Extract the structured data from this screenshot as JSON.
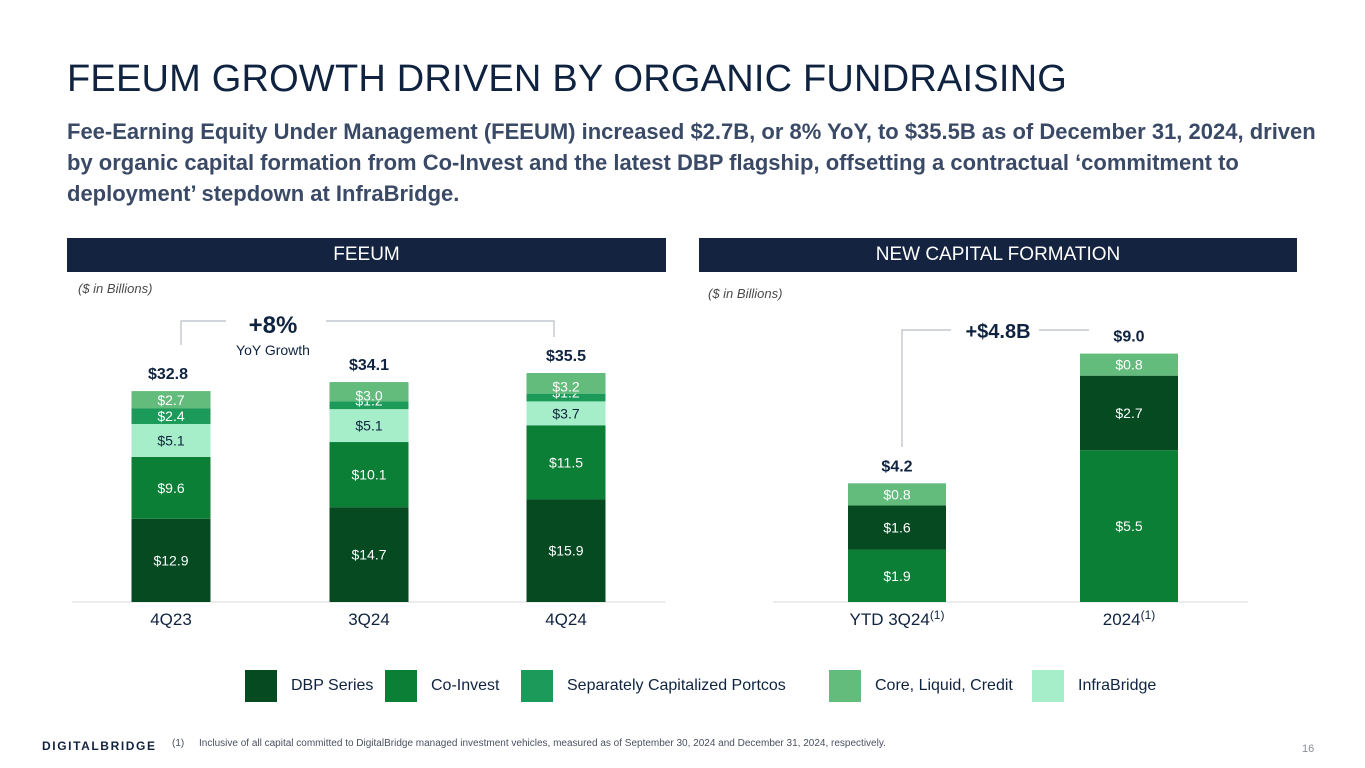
{
  "title": "FEEUM GROWTH DRIVEN BY ORGANIC FUNDRAISING",
  "subtitle": "Fee-Earning Equity Under Management (FEEUM) increased $2.7B, or 8% YoY, to $35.5B as of December 31, 2024, driven by organic capital formation from Co-Invest and the latest DBP flagship, offsetting a contractual ‘commitment to deployment’ stepdown at InfraBridge.",
  "colors": {
    "dbp": "#064a22",
    "coinvest": "#0b7f35",
    "portcos": "#1b9a5a",
    "core": "#63bb7c",
    "infra": "#a6eec9",
    "header_bg": "#14233f"
  },
  "chart_data": [
    {
      "type": "bar",
      "stacked": true,
      "title": "FEEUM",
      "units_note": "($ in Billions)",
      "categories": [
        "4Q23",
        "3Q24",
        "4Q24"
      ],
      "series": [
        {
          "name": "DBP Series",
          "key": "dbp",
          "values": [
            12.9,
            14.7,
            15.9
          ],
          "labels": [
            "$12.9",
            "$14.7",
            "$15.9"
          ]
        },
        {
          "name": "Co-Invest",
          "key": "coinvest",
          "values": [
            9.6,
            10.1,
            11.5
          ],
          "labels": [
            "$9.6",
            "$10.1",
            "$11.5"
          ]
        },
        {
          "name": "InfraBridge",
          "key": "infra",
          "values": [
            5.1,
            5.1,
            3.7
          ],
          "labels": [
            "$5.1",
            "$5.1",
            "$3.7"
          ]
        },
        {
          "name": "Separately Capitalized Portcos",
          "key": "portcos",
          "values": [
            2.4,
            1.2,
            1.2
          ],
          "labels": [
            "$2.4",
            "$1.2",
            "$1.2"
          ]
        },
        {
          "name": "Core, Liquid, Credit",
          "key": "core",
          "values": [
            2.7,
            3.0,
            3.2
          ],
          "labels": [
            "$2.7",
            "$3.0",
            "$3.2"
          ]
        }
      ],
      "totals": [
        32.8,
        34.1,
        35.5
      ],
      "total_labels": [
        "$32.8",
        "$34.1",
        "$35.5"
      ],
      "annotation": {
        "value": "+8%",
        "sub": "YoY Growth"
      },
      "ylim": [
        0,
        40
      ]
    },
    {
      "type": "bar",
      "stacked": true,
      "title": "NEW CAPITAL FORMATION",
      "units_note": "($ in Billions)",
      "categories": [
        "YTD 3Q24",
        "2024"
      ],
      "category_superscripts": [
        "(1)",
        "(1)"
      ],
      "series": [
        {
          "name": "Co-Invest",
          "key": "coinvest",
          "values": [
            1.9,
            5.5
          ],
          "labels": [
            "$1.9",
            "$5.5"
          ]
        },
        {
          "name": "DBP Series",
          "key": "dbp",
          "values": [
            1.6,
            2.7
          ],
          "labels": [
            "$1.6",
            "$2.7"
          ]
        },
        {
          "name": "Core, Liquid, Credit",
          "key": "core",
          "values": [
            0.8,
            0.8
          ],
          "labels": [
            "$0.8",
            "$0.8"
          ]
        }
      ],
      "totals": [
        4.2,
        9.0
      ],
      "total_labels": [
        "$4.2",
        "$9.0"
      ],
      "annotation": {
        "value": "+$4.8B"
      },
      "ylim": [
        0,
        10
      ]
    }
  ],
  "legend": [
    {
      "label": "DBP Series",
      "key": "dbp"
    },
    {
      "label": "Co-Invest",
      "key": "coinvest"
    },
    {
      "label": "Separately Capitalized Portcos",
      "key": "portcos"
    },
    {
      "label": "Core, Liquid, Credit",
      "key": "core"
    },
    {
      "label": "InfraBridge",
      "key": "infra"
    }
  ],
  "footer": {
    "logo": "DIGITALBRIDGE",
    "footnote_num": "(1)",
    "footnote": "Inclusive of all capital committed to DigitalBridge managed investment vehicles, measured as of September 30, 2024 and December 31, 2024, respectively.",
    "page": "16"
  }
}
